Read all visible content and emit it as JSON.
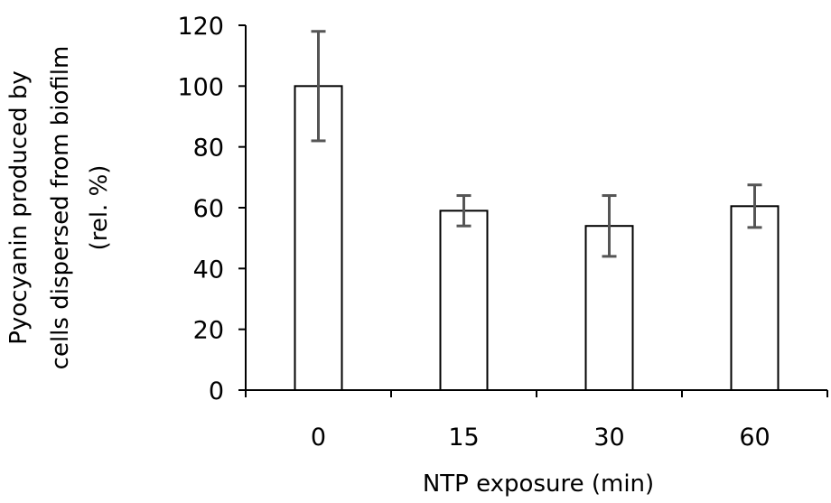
{
  "chart_data": {
    "type": "bar",
    "title": "",
    "xlabel": "NTP exposure (min)",
    "ylabel_lines": [
      "Pyocyanin produced by",
      "cells dispersed from biofilm",
      "(rel. %)"
    ],
    "categories": [
      "0",
      "15",
      "30",
      "60"
    ],
    "values": [
      100,
      59,
      54,
      60.5
    ],
    "error_low": [
      82,
      54,
      44,
      53.5
    ],
    "error_high": [
      118,
      64,
      64,
      67.5
    ],
    "ylim": [
      0,
      120
    ],
    "yticks": [
      "0",
      "20",
      "40",
      "60",
      "80",
      "100",
      "120"
    ],
    "grid": false,
    "legend": "none",
    "colors": {
      "bar_fill": "#ffffff",
      "bar_stroke": "#000000",
      "axis": "#000000",
      "error_bar": "#555555"
    }
  }
}
